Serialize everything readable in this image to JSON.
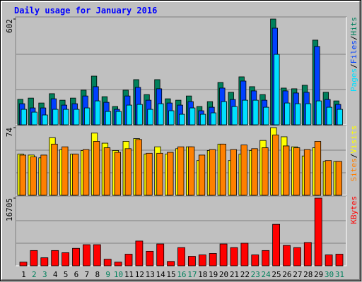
{
  "chart_data": {
    "type": "bar",
    "title": "Daily usage for January 2016",
    "categories": [
      "1",
      "2",
      "3",
      "4",
      "5",
      "6",
      "7",
      "8",
      "9",
      "10",
      "11",
      "12",
      "13",
      "14",
      "15",
      "16",
      "17",
      "18",
      "19",
      "20",
      "21",
      "22",
      "23",
      "24",
      "25",
      "26",
      "27",
      "28",
      "29",
      "30",
      "31"
    ],
    "weekend_indices": [
      1,
      2,
      8,
      9,
      15,
      16,
      22,
      23,
      29,
      30
    ],
    "weekday_color": "#000000",
    "weekend_color": "#00805c",
    "legend_separator": "/",
    "grid": true,
    "panels": [
      {
        "ylim": [
          0,
          602
        ],
        "yticks": [
          602
        ],
        "series": [
          {
            "name": "Hits",
            "color": "#00805c",
            "values": [
              145,
              152,
              124,
              177,
              140,
              152,
              197,
              277,
              160,
              104,
              197,
              257,
              172,
              257,
              148,
              140,
              164,
              104,
              132,
              241,
              185,
              273,
              217,
              172,
              602,
              209,
              205,
              225,
              482,
              185,
              136
            ]
          },
          {
            "name": "Files",
            "color": "#0040ff",
            "values": [
              120,
              96,
              96,
              148,
              112,
              120,
              164,
              217,
              128,
              88,
              164,
              213,
              140,
              205,
              124,
              112,
              132,
              80,
              100,
              209,
              144,
              249,
              193,
              140,
              550,
              193,
              181,
              185,
              446,
              144,
              116
            ]
          },
          {
            "name": "Pages",
            "color": "#00e0ff",
            "values": [
              88,
              72,
              56,
              88,
              88,
              88,
              96,
              136,
              76,
              76,
              112,
              116,
              88,
              120,
              80,
              60,
              96,
              60,
              68,
              132,
              104,
              140,
              140,
              100,
              401,
              124,
              120,
              120,
              136,
              100,
              88
            ]
          }
        ]
      },
      {
        "ylim": [
          0,
          74
        ],
        "yticks": [
          74
        ],
        "series": [
          {
            "name": "Visits",
            "color": "#ffff00",
            "values": [
              45,
              44,
              41,
              63,
              50,
              45,
              49,
              68,
              57,
              49,
              59,
              62,
              45,
              53,
              45,
              51,
              53,
              38,
              49,
              56,
              38,
              45,
              49,
              60,
              74,
              64,
              53,
              43,
              52,
              37,
              37
            ]
          },
          {
            "name": "Sites",
            "color": "#ff8000",
            "values": [
              44,
              42,
              44,
              56,
              53,
              45,
              50,
              59,
              52,
              47,
              51,
              61,
              46,
              46,
              47,
              53,
              53,
              44,
              50,
              56,
              50,
              55,
              51,
              52,
              66,
              54,
              52,
              50,
              59,
              38,
              37
            ]
          }
        ]
      },
      {
        "ylim": [
          0,
          16705
        ],
        "yticks": [
          16705
        ],
        "series": [
          {
            "name": "KBytes",
            "color": "#ff0000",
            "values": [
              900,
              3770,
              1980,
              3770,
              3230,
              4310,
              5210,
              5210,
              1620,
              900,
              2870,
              6110,
              3590,
              5390,
              1080,
              4490,
              2340,
              2690,
              3050,
              5390,
              4490,
              5570,
              2690,
              3770,
              10240,
              5030,
              4490,
              5750,
              16705,
              2690,
              2870
            ]
          }
        ]
      }
    ]
  }
}
